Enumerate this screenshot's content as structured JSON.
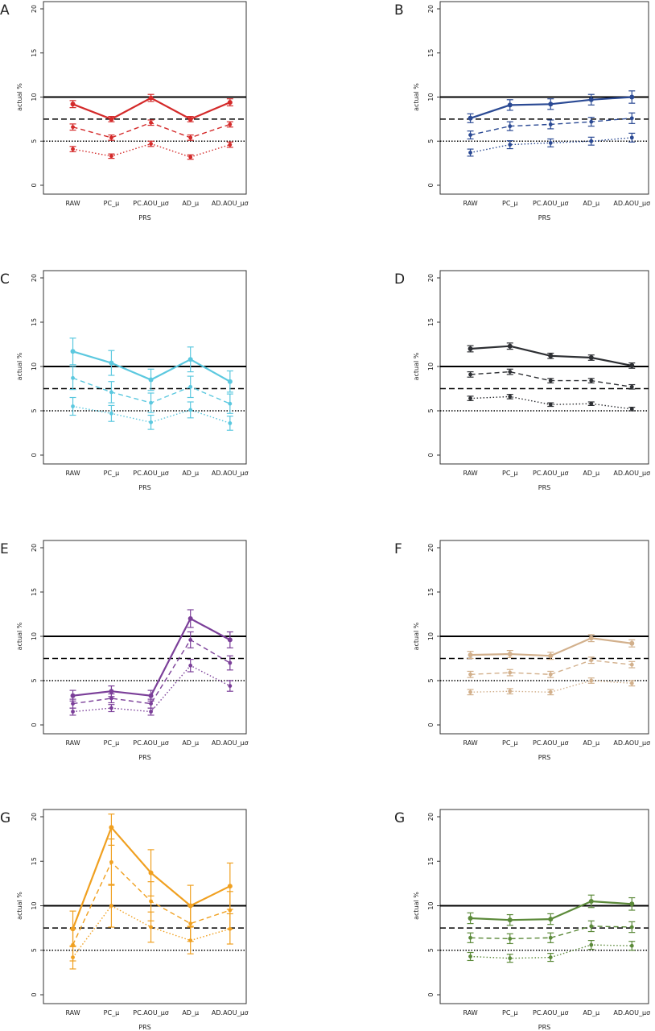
{
  "chart_data": [
    {
      "type": "line",
      "panel_label": "A",
      "color": "#d42a2a",
      "categories": [
        "RAW",
        "PC_μ",
        "PC.AOU_μσ",
        "AD_μ",
        "AD.AOU_μσ"
      ],
      "xlabel": "PRS",
      "ylabel": "actual %",
      "ylim": [
        0,
        20
      ],
      "yticks": [
        "0",
        "5",
        "10",
        "15",
        "20"
      ],
      "reference_lines": [
        10,
        7.5,
        5
      ],
      "series": [
        {
          "style": "solid",
          "values": [
            9.2,
            7.5,
            9.9,
            7.5,
            9.4
          ],
          "err": [
            0.4,
            0.3,
            0.4,
            0.3,
            0.4
          ]
        },
        {
          "style": "dashed",
          "values": [
            6.6,
            5.4,
            7.1,
            5.4,
            6.9
          ],
          "err": [
            0.35,
            0.3,
            0.3,
            0.3,
            0.3
          ]
        },
        {
          "style": "dotted",
          "values": [
            4.1,
            3.3,
            4.7,
            3.2,
            4.6
          ],
          "err": [
            0.3,
            0.25,
            0.3,
            0.25,
            0.3
          ]
        }
      ]
    },
    {
      "type": "line",
      "panel_label": "B",
      "color": "#2b4a94",
      "categories": [
        "RAW",
        "PC_μ",
        "PC.AOU_μσ",
        "AD_μ",
        "AD.AOU_μσ"
      ],
      "xlabel": "PRS",
      "ylabel": "actual %",
      "ylim": [
        0,
        20
      ],
      "yticks": [
        "0",
        "5",
        "10",
        "15",
        "20"
      ],
      "reference_lines": [
        10,
        7.5,
        5
      ],
      "series": [
        {
          "style": "solid",
          "values": [
            7.6,
            9.1,
            9.2,
            9.7,
            10.0
          ],
          "err": [
            0.5,
            0.6,
            0.6,
            0.6,
            0.7
          ]
        },
        {
          "style": "dashed",
          "values": [
            5.7,
            6.7,
            6.9,
            7.2,
            7.6
          ],
          "err": [
            0.45,
            0.5,
            0.5,
            0.5,
            0.6
          ]
        },
        {
          "style": "dotted",
          "values": [
            3.7,
            4.6,
            4.8,
            5.0,
            5.4
          ],
          "err": [
            0.4,
            0.45,
            0.45,
            0.45,
            0.5
          ]
        }
      ]
    },
    {
      "type": "line",
      "panel_label": "C",
      "color": "#5bc8df",
      "categories": [
        "RAW",
        "PC_μ",
        "PC.AOU_μσ",
        "AD_μ",
        "AD.AOU_μσ"
      ],
      "xlabel": "PRS",
      "ylabel": "actual %",
      "ylim": [
        0,
        20
      ],
      "yticks": [
        "0",
        "5",
        "10",
        "15",
        "20"
      ],
      "reference_lines": [
        10,
        7.5,
        5
      ],
      "series": [
        {
          "style": "solid",
          "values": [
            11.7,
            10.4,
            8.5,
            10.8,
            8.3
          ],
          "err": [
            1.5,
            1.4,
            1.2,
            1.4,
            1.2
          ]
        },
        {
          "style": "dashed",
          "values": [
            8.7,
            7.1,
            5.9,
            7.7,
            5.8
          ],
          "err": [
            1.3,
            1.2,
            1.1,
            1.2,
            1.1
          ]
        },
        {
          "style": "dotted",
          "values": [
            5.5,
            4.7,
            3.7,
            5.1,
            3.6
          ],
          "err": [
            1.0,
            0.9,
            0.8,
            0.9,
            0.8
          ]
        }
      ]
    },
    {
      "type": "line",
      "panel_label": "D",
      "color": "#2d2f33",
      "categories": [
        "RAW",
        "PC_μ",
        "PC.AOU_μσ",
        "AD_μ",
        "AD.AOU_μσ"
      ],
      "xlabel": "PRS",
      "ylabel": "actual %",
      "ylim": [
        0,
        20
      ],
      "yticks": [
        "0",
        "5",
        "10",
        "15",
        "20"
      ],
      "reference_lines": [
        10,
        7.5,
        5
      ],
      "series": [
        {
          "style": "solid",
          "values": [
            12.0,
            12.3,
            11.2,
            11.0,
            10.1
          ],
          "err": [
            0.35,
            0.35,
            0.3,
            0.3,
            0.3
          ]
        },
        {
          "style": "dashed",
          "values": [
            9.1,
            9.4,
            8.4,
            8.4,
            7.7
          ],
          "err": [
            0.3,
            0.3,
            0.25,
            0.25,
            0.25
          ]
        },
        {
          "style": "dotted",
          "values": [
            6.4,
            6.6,
            5.7,
            5.8,
            5.2
          ],
          "err": [
            0.25,
            0.25,
            0.2,
            0.2,
            0.2
          ]
        }
      ]
    },
    {
      "type": "line",
      "panel_label": "E",
      "color": "#7b3f99",
      "categories": [
        "RAW",
        "PC_μ",
        "PC.AOU_μσ",
        "AD_μ",
        "AD.AOU_μσ"
      ],
      "xlabel": "PRS",
      "ylabel": "actual %",
      "ylim": [
        0,
        20
      ],
      "yticks": [
        "0",
        "5",
        "10",
        "15",
        "20"
      ],
      "reference_lines": [
        10,
        7.5,
        5
      ],
      "series": [
        {
          "style": "solid",
          "values": [
            3.3,
            3.8,
            3.3,
            12.0,
            9.6
          ],
          "err": [
            0.6,
            0.6,
            0.6,
            1.0,
            0.9
          ]
        },
        {
          "style": "dashed",
          "values": [
            2.4,
            3.0,
            2.4,
            9.6,
            7.0
          ],
          "err": [
            0.5,
            0.5,
            0.5,
            0.9,
            0.8
          ]
        },
        {
          "style": "dotted",
          "values": [
            1.5,
            1.9,
            1.5,
            6.7,
            4.4
          ],
          "err": [
            0.4,
            0.4,
            0.4,
            0.7,
            0.6
          ]
        }
      ]
    },
    {
      "type": "line",
      "panel_label": "F",
      "color": "#d2b08c",
      "categories": [
        "RAW",
        "PC_μ",
        "PC.AOU_μσ",
        "AD_μ",
        "AD.AOU_μσ"
      ],
      "xlabel": "PRS",
      "ylabel": "actual %",
      "ylim": [
        0,
        20
      ],
      "yticks": [
        "0",
        "5",
        "10",
        "15",
        "20"
      ],
      "reference_lines": [
        10,
        7.5,
        5
      ],
      "series": [
        {
          "style": "solid",
          "values": [
            7.9,
            8.0,
            7.8,
            9.8,
            9.2
          ],
          "err": [
            0.4,
            0.4,
            0.4,
            0.4,
            0.4
          ]
        },
        {
          "style": "dashed",
          "values": [
            5.7,
            5.9,
            5.7,
            7.3,
            6.8
          ],
          "err": [
            0.35,
            0.35,
            0.35,
            0.35,
            0.35
          ]
        },
        {
          "style": "dotted",
          "values": [
            3.7,
            3.8,
            3.7,
            5.0,
            4.7
          ],
          "err": [
            0.3,
            0.3,
            0.3,
            0.3,
            0.3
          ]
        }
      ]
    },
    {
      "type": "line",
      "panel_label": "G",
      "color": "#f0a020",
      "categories": [
        "RAW",
        "PC_μ",
        "PC.AOU_μσ",
        "AD_μ",
        "AD.AOU_μσ"
      ],
      "xlabel": "PRS",
      "ylabel": "actual %",
      "ylim": [
        0,
        20
      ],
      "yticks": [
        "0",
        "5",
        "10",
        "15",
        "20"
      ],
      "reference_lines": [
        10,
        7.5,
        5
      ],
      "series": [
        {
          "style": "solid",
          "values": [
            7.4,
            18.8,
            13.7,
            10.0,
            12.2
          ],
          "err": [
            2.0,
            2.0,
            2.6,
            2.3,
            2.6
          ]
        },
        {
          "style": "dashed",
          "values": [
            5.6,
            14.9,
            10.5,
            8.0,
            9.5
          ],
          "err": [
            1.8,
            2.6,
            2.2,
            2.0,
            2.1
          ]
        },
        {
          "style": "dotted",
          "values": [
            4.2,
            10.0,
            7.6,
            6.1,
            7.4
          ],
          "err": [
            1.3,
            2.4,
            1.7,
            1.5,
            1.7
          ]
        }
      ]
    },
    {
      "type": "line",
      "panel_label": "G",
      "color": "#5c8a3a",
      "categories": [
        "RAW",
        "PC_μ",
        "PC.AOU_μσ",
        "AD_μ",
        "AD.AOU_μσ"
      ],
      "xlabel": "PRS",
      "ylabel": "actual %",
      "ylim": [
        0,
        20
      ],
      "yticks": [
        "0",
        "5",
        "10",
        "15",
        "20"
      ],
      "reference_lines": [
        10,
        7.5,
        5
      ],
      "series": [
        {
          "style": "solid",
          "values": [
            8.6,
            8.4,
            8.5,
            10.5,
            10.2
          ],
          "err": [
            0.6,
            0.6,
            0.6,
            0.7,
            0.7
          ]
        },
        {
          "style": "dashed",
          "values": [
            6.4,
            6.3,
            6.4,
            7.7,
            7.6
          ],
          "err": [
            0.55,
            0.55,
            0.55,
            0.6,
            0.6
          ]
        },
        {
          "style": "dotted",
          "values": [
            4.3,
            4.1,
            4.2,
            5.6,
            5.5
          ],
          "err": [
            0.45,
            0.45,
            0.45,
            0.5,
            0.5
          ]
        }
      ]
    }
  ]
}
